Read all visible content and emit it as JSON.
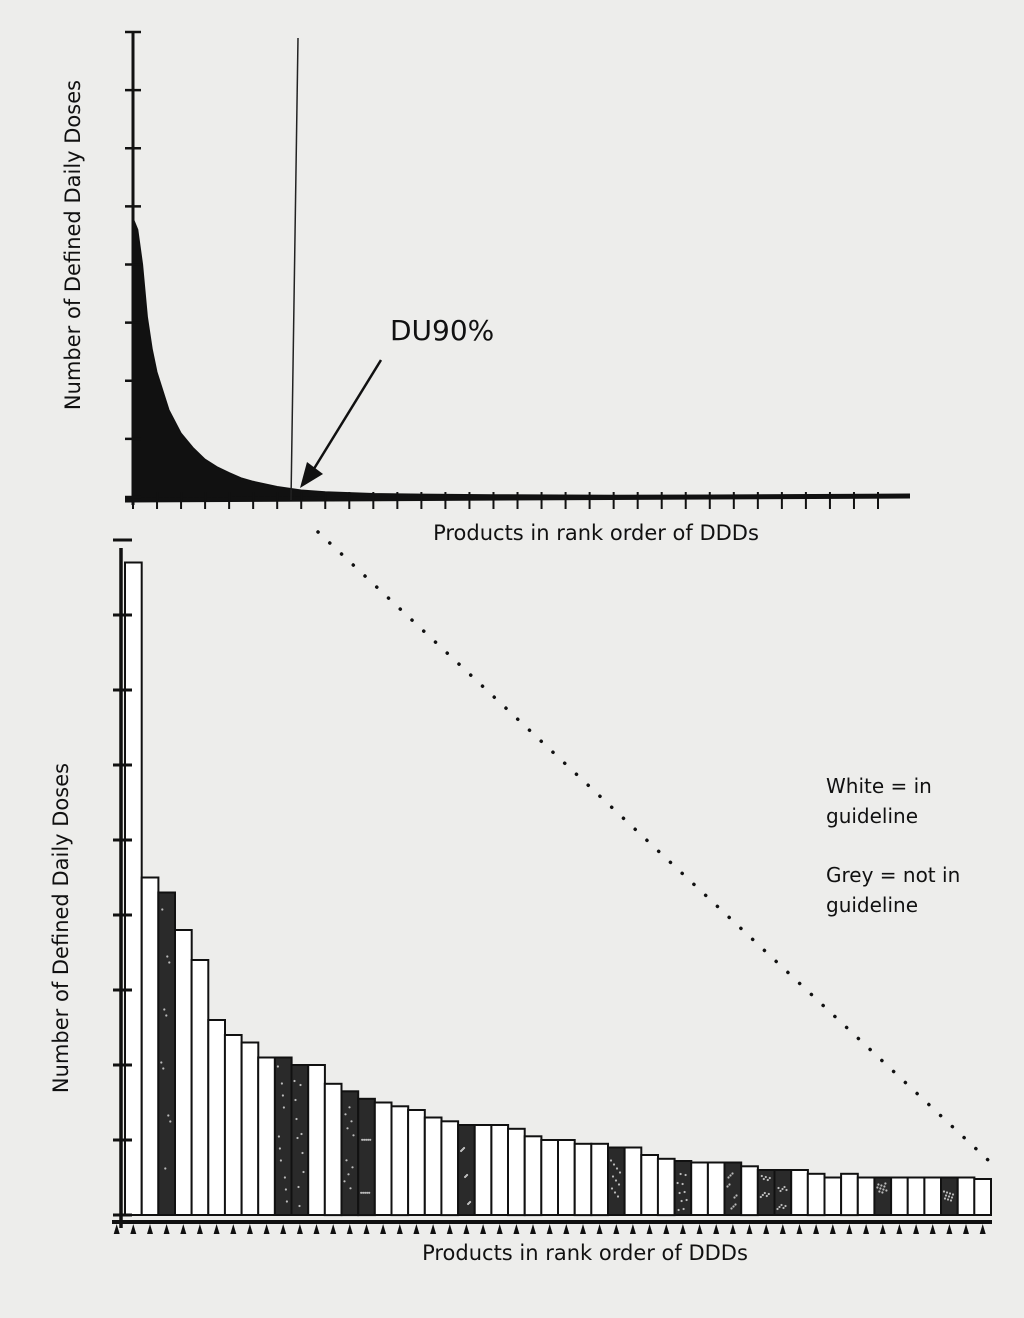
{
  "chart_data": [
    {
      "type": "area",
      "ylabel": "Number of Defined Daily Doses",
      "xlabel": "Products in rank order of DDDs",
      "annotation": "DU90%",
      "cutoff_rank": 7,
      "x_tick_count": 31,
      "y_tick_count": 8,
      "ylim": [
        0,
        8
      ],
      "x": [
        0,
        0.2,
        0.4,
        0.6,
        0.8,
        1,
        1.5,
        2,
        2.5,
        3,
        3.5,
        4,
        4.5,
        5,
        6,
        7,
        8,
        10,
        12,
        15,
        20,
        25,
        31
      ],
      "y": [
        4.8,
        4.6,
        4.0,
        3.1,
        2.55,
        2.15,
        1.5,
        1.1,
        0.85,
        0.65,
        0.52,
        0.42,
        0.33,
        0.27,
        0.18,
        0.12,
        0.09,
        0.06,
        0.05,
        0.04,
        0.03,
        0.03,
        0.03
      ]
    },
    {
      "type": "bar",
      "ylabel": "Number of Defined Daily Doses",
      "xlabel": "Products in rank order of DDDs",
      "ylim": [
        0,
        9
      ],
      "y_tick_count": 9,
      "colors": {
        "in_guideline": "#ffffff",
        "not_in_guideline": "#2a2a2a"
      },
      "values": [
        8.7,
        4.5,
        4.3,
        3.8,
        3.4,
        2.6,
        2.4,
        2.3,
        2.1,
        2.1,
        2.0,
        2.0,
        1.75,
        1.65,
        1.55,
        1.5,
        1.45,
        1.4,
        1.3,
        1.25,
        1.2,
        1.2,
        1.2,
        1.15,
        1.05,
        1.0,
        1.0,
        0.95,
        0.95,
        0.9,
        0.9,
        0.8,
        0.75,
        0.72,
        0.7,
        0.7,
        0.7,
        0.65,
        0.6,
        0.6,
        0.6,
        0.55,
        0.5,
        0.55,
        0.5,
        0.5,
        0.5,
        0.5,
        0.5,
        0.5,
        0.5,
        0.48
      ],
      "in_guideline": [
        true,
        true,
        false,
        true,
        true,
        true,
        true,
        true,
        true,
        false,
        false,
        true,
        true,
        false,
        false,
        true,
        true,
        true,
        true,
        true,
        false,
        true,
        true,
        true,
        true,
        true,
        true,
        true,
        true,
        false,
        true,
        true,
        true,
        false,
        true,
        true,
        false,
        true,
        false,
        false,
        true,
        true,
        true,
        true,
        true,
        false,
        true,
        true,
        true,
        false,
        true,
        true
      ]
    }
  ],
  "legend": {
    "white_line1": "White = in",
    "white_line2": "guideline",
    "grey_line1": "Grey = not in",
    "grey_line2": "guideline"
  }
}
